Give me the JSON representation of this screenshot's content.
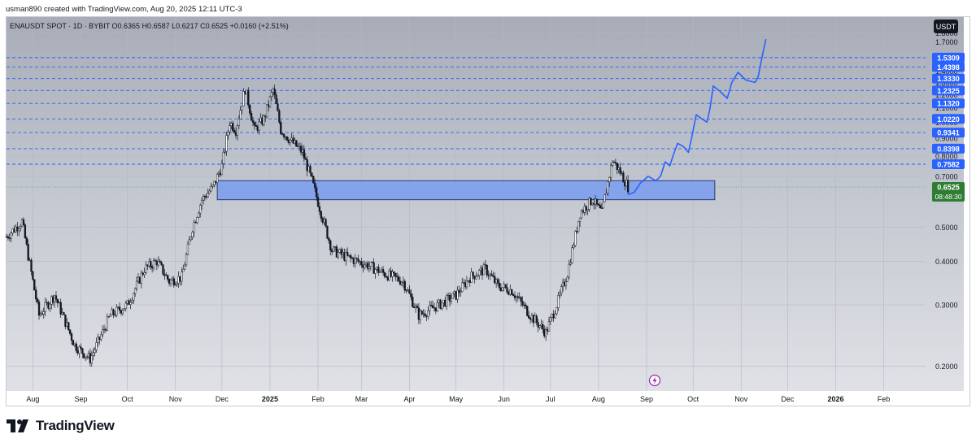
{
  "header": {
    "credit": "usman890 created with TradingView.com, Aug 20, 2025 12:11 UTC-3"
  },
  "legend": {
    "text": "ENAUSDT SPOT · 1D · BYBIT  O0.6365  H0.6587  L0.6217  C0.6525  +0.0160 (+2.51%)"
  },
  "currency_badge": "USDT",
  "last_price": {
    "value": "0.6525",
    "countdown": "08:48:30"
  },
  "footer": {
    "brand": "TradingView"
  },
  "colors": {
    "background": "#c3c7cf",
    "candle": "#131722",
    "level_line": "#2962ff",
    "zone_fill": "#7a9cf0",
    "zone_border": "#2b3b78",
    "projection": "#2962ff",
    "last_price_badge": "#2e7d32",
    "label_badge": "#2962ff"
  },
  "chart_data": {
    "type": "candlestick",
    "symbol": "ENAUSDT",
    "timeframe": "1D",
    "exchange": "BYBIT",
    "y_scale": "log",
    "ylim": [
      0.17,
      2.0
    ],
    "y_ticks": [
      0.2,
      0.3,
      0.4,
      0.5,
      0.7,
      0.8,
      0.9,
      1.0,
      1.1,
      1.2,
      1.3,
      1.4,
      1.5,
      1.7,
      1.8
    ],
    "y_tick_labels": [
      "0.2000",
      "0.3000",
      "0.4000",
      "0.5000",
      "0.7000",
      "0.8000",
      "0.9000",
      "1.0000",
      "1.1000",
      "1.2000",
      "1.3000",
      "1.4000",
      "1.5000",
      "1.7000",
      "1.8000"
    ],
    "x_range": [
      "2024-07-15",
      "2026-02-28"
    ],
    "x_ticks": [
      "2024-08-01",
      "2024-09-01",
      "2024-10-01",
      "2024-11-01",
      "2024-12-01",
      "2025-01-01",
      "2025-02-01",
      "2025-03-01",
      "2025-04-01",
      "2025-05-01",
      "2025-06-01",
      "2025-07-01",
      "2025-08-01",
      "2025-09-01",
      "2025-10-01",
      "2025-11-01",
      "2025-12-01",
      "2026-01-01",
      "2026-02-01"
    ],
    "x_tick_labels": [
      "Aug",
      "Sep",
      "Oct",
      "Nov",
      "Dec",
      "2025",
      "Feb",
      "Mar",
      "Apr",
      "May",
      "Jun",
      "Jul",
      "Aug",
      "Sep",
      "Oct",
      "Nov",
      "Dec",
      "2026",
      "Feb"
    ],
    "ohlc_last": {
      "open": 0.6365,
      "high": 0.6587,
      "low": 0.6217,
      "close": 0.6525,
      "change": 0.016,
      "change_pct": 2.51
    },
    "close_path": [
      [
        "2024-07-15",
        0.47
      ],
      [
        "2024-07-25",
        0.52
      ],
      [
        "2024-08-05",
        0.28
      ],
      [
        "2024-08-15",
        0.32
      ],
      [
        "2024-08-28",
        0.23
      ],
      [
        "2024-09-07",
        0.21
      ],
      [
        "2024-09-20",
        0.28
      ],
      [
        "2024-10-01",
        0.3
      ],
      [
        "2024-10-12",
        0.38
      ],
      [
        "2024-10-20",
        0.4
      ],
      [
        "2024-10-28",
        0.35
      ],
      [
        "2024-11-05",
        0.36
      ],
      [
        "2024-11-12",
        0.5
      ],
      [
        "2024-11-18",
        0.6
      ],
      [
        "2024-11-25",
        0.65
      ],
      [
        "2024-12-01",
        0.75
      ],
      [
        "2024-12-06",
        1.0
      ],
      [
        "2024-12-10",
        0.95
      ],
      [
        "2024-12-16",
        1.25
      ],
      [
        "2024-12-22",
        0.95
      ],
      [
        "2024-12-28",
        1.02
      ],
      [
        "2025-01-03",
        1.24
      ],
      [
        "2025-01-08",
        0.95
      ],
      [
        "2025-01-15",
        0.88
      ],
      [
        "2025-01-22",
        0.82
      ],
      [
        "2025-01-28",
        0.68
      ],
      [
        "2025-02-03",
        0.55
      ],
      [
        "2025-02-10",
        0.43
      ],
      [
        "2025-02-20",
        0.41
      ],
      [
        "2025-03-05",
        0.39
      ],
      [
        "2025-03-15",
        0.37
      ],
      [
        "2025-03-28",
        0.35
      ],
      [
        "2025-04-07",
        0.28
      ],
      [
        "2025-04-20",
        0.3
      ],
      [
        "2025-05-01",
        0.32
      ],
      [
        "2025-05-10",
        0.36
      ],
      [
        "2025-05-20",
        0.38
      ],
      [
        "2025-05-28",
        0.34
      ],
      [
        "2025-06-06",
        0.33
      ],
      [
        "2025-06-18",
        0.28
      ],
      [
        "2025-06-28",
        0.25
      ],
      [
        "2025-07-05",
        0.3
      ],
      [
        "2025-07-12",
        0.37
      ],
      [
        "2025-07-20",
        0.55
      ],
      [
        "2025-07-28",
        0.6
      ],
      [
        "2025-08-03",
        0.55
      ],
      [
        "2025-08-10",
        0.78
      ],
      [
        "2025-08-15",
        0.72
      ],
      [
        "2025-08-20",
        0.6525
      ]
    ],
    "levels": [
      0.7582,
      0.8398,
      0.9341,
      1.022,
      1.132,
      1.2325,
      1.333,
      1.4398,
      1.5309
    ],
    "level_labels": [
      "0.7582",
      "0.8398",
      "0.9341",
      "1.0220",
      "1.1320",
      "1.2325",
      "1.3330",
      "1.4398",
      "1.5309"
    ],
    "zone": {
      "from": "2024-11-28",
      "to": "2025-10-15",
      "top": 0.68,
      "bottom": 0.6
    },
    "projection": [
      [
        "2025-08-20",
        0.62
      ],
      [
        "2025-08-24",
        0.63
      ],
      [
        "2025-08-28",
        0.67
      ],
      [
        "2025-09-02",
        0.7
      ],
      [
        "2025-09-07",
        0.68
      ],
      [
        "2025-09-10",
        0.7
      ],
      [
        "2025-09-13",
        0.77
      ],
      [
        "2025-09-16",
        0.75
      ],
      [
        "2025-09-18",
        0.8
      ],
      [
        "2025-09-21",
        0.87
      ],
      [
        "2025-09-25",
        0.85
      ],
      [
        "2025-09-28",
        0.82
      ],
      [
        "2025-09-30",
        0.9
      ],
      [
        "2025-10-03",
        1.05
      ],
      [
        "2025-10-07",
        1.02
      ],
      [
        "2025-10-10",
        1.0
      ],
      [
        "2025-10-12",
        1.1
      ],
      [
        "2025-10-14",
        1.27
      ],
      [
        "2025-10-18",
        1.23
      ],
      [
        "2025-10-23",
        1.17
      ],
      [
        "2025-10-26",
        1.3
      ],
      [
        "2025-10-30",
        1.39
      ],
      [
        "2025-11-04",
        1.32
      ],
      [
        "2025-11-10",
        1.3
      ],
      [
        "2025-11-12",
        1.35
      ],
      [
        "2025-11-14",
        1.5
      ],
      [
        "2025-11-17",
        1.73
      ]
    ]
  }
}
